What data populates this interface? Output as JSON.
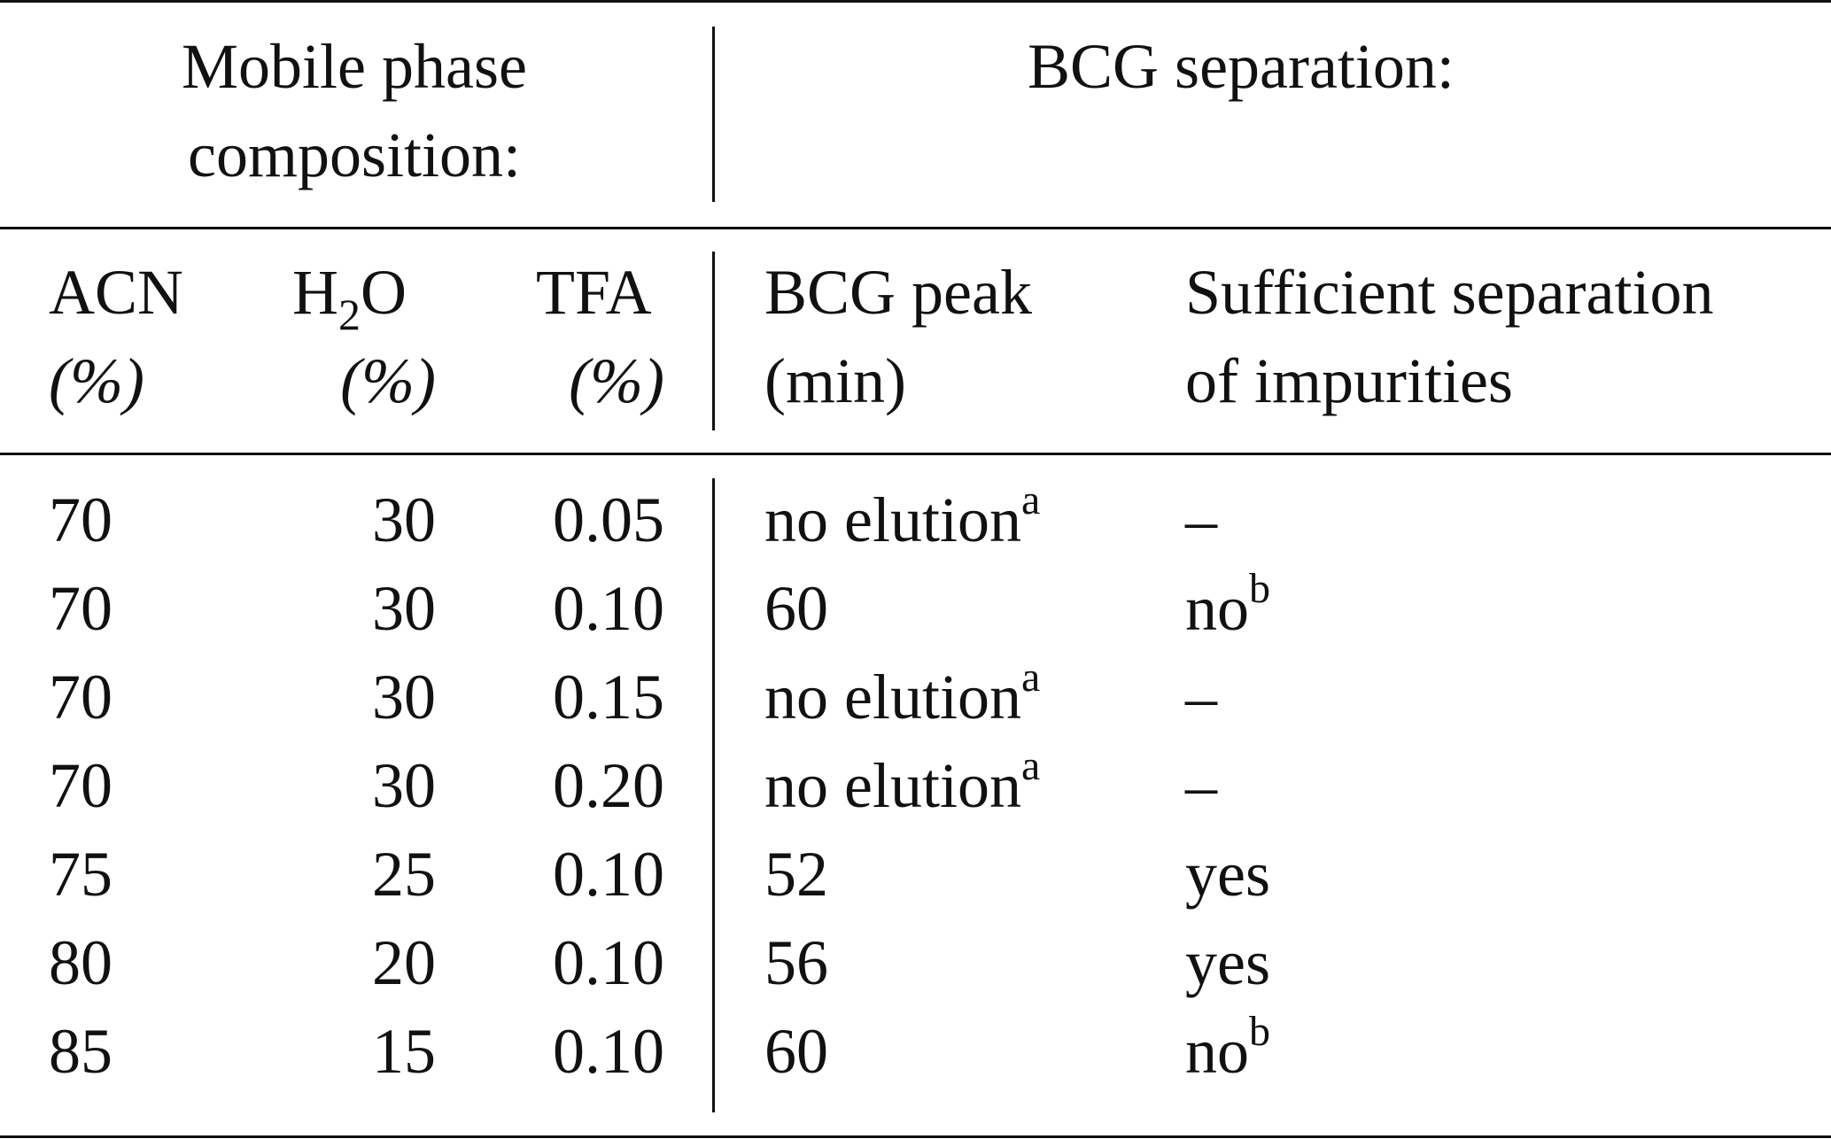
{
  "header": {
    "group_left": "Mobile phase composition:",
    "group_right": "BCG separation:",
    "columns": {
      "acn": {
        "name": "ACN",
        "unit": "(%)"
      },
      "h2o": {
        "name_main": "H",
        "name_sub": "2",
        "name_tail": "O",
        "unit": "(%)"
      },
      "tfa": {
        "name": "TFA",
        "unit": "(%)"
      },
      "bcg_peak": {
        "name": "BCG peak",
        "unit": "(min)"
      },
      "separation": {
        "name": "Sufficient separation",
        "unit": "of impurities"
      }
    }
  },
  "rows": [
    {
      "acn": "70",
      "h2o": "30",
      "tfa": "0.05",
      "peak": "no elution",
      "peak_note": "a",
      "sep": "–",
      "sep_note": ""
    },
    {
      "acn": "70",
      "h2o": "30",
      "tfa": "0.10",
      "peak": "60",
      "peak_note": "",
      "sep": "no",
      "sep_note": "b"
    },
    {
      "acn": "70",
      "h2o": "30",
      "tfa": "0.15",
      "peak": "no elution",
      "peak_note": "a",
      "sep": "–",
      "sep_note": ""
    },
    {
      "acn": "70",
      "h2o": "30",
      "tfa": "0.20",
      "peak": "no elution",
      "peak_note": "a",
      "sep": "–",
      "sep_note": ""
    },
    {
      "acn": "75",
      "h2o": "25",
      "tfa": "0.10",
      "peak": "52",
      "peak_note": "",
      "sep": "yes",
      "sep_note": ""
    },
    {
      "acn": "80",
      "h2o": "20",
      "tfa": "0.10",
      "peak": "56",
      "peak_note": "",
      "sep": "yes",
      "sep_note": ""
    },
    {
      "acn": "85",
      "h2o": "15",
      "tfa": "0.10",
      "peak": "60",
      "peak_note": "",
      "sep": "no",
      "sep_note": "b"
    }
  ]
}
